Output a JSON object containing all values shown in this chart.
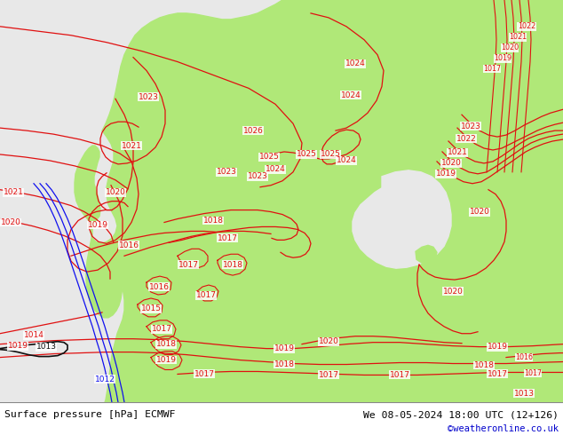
{
  "title_left": "Surface pressure [hPa] ECMWF",
  "title_right": "We 08-05-2024 18:00 UTC (12+126)",
  "title_right2": "©weatheronline.co.uk",
  "gray_bg": "#e8e8e8",
  "green_land": "#b0e878",
  "contour_red": "#e01010",
  "contour_black": "#101010",
  "contour_blue": "#1010ee",
  "copyright_color": "#0000cc",
  "fig_width": 6.34,
  "fig_height": 4.9,
  "dpi": 100,
  "land_polygon_x": [
    130,
    145,
    148,
    142,
    138,
    132,
    125,
    120,
    118,
    122,
    128,
    135,
    140,
    145,
    150,
    155,
    158,
    155,
    150,
    145,
    143,
    142,
    140,
    138,
    135,
    132,
    130,
    128,
    127,
    126,
    125,
    123,
    120,
    118,
    116,
    114,
    113,
    112,
    113,
    115,
    118,
    120,
    122,
    124,
    126,
    128,
    130,
    132,
    135,
    138,
    140,
    143,
    146,
    148,
    150,
    153,
    156,
    160,
    163,
    165,
    168,
    170,
    172,
    174,
    176,
    178,
    180,
    182,
    185,
    188,
    190,
    193,
    196,
    200,
    204,
    208,
    212,
    216,
    220,
    225,
    230,
    234,
    238,
    240,
    238,
    235,
    232,
    230,
    228,
    226,
    225,
    224,
    223,
    222,
    222,
    222,
    223,
    224,
    226,
    228,
    230,
    233,
    236,
    240,
    244,
    248,
    252,
    256,
    260,
    264,
    268,
    272,
    276,
    280,
    284,
    288,
    292,
    296,
    300,
    304,
    307,
    310,
    312,
    314,
    315,
    316,
    316,
    315,
    313,
    311,
    309,
    307,
    306,
    305,
    305,
    306,
    307,
    308,
    309,
    310,
    311,
    312,
    313,
    314,
    315,
    316,
    318,
    320,
    322,
    325,
    328,
    331,
    334,
    336,
    338,
    340,
    341,
    342,
    342,
    341,
    340,
    338,
    336,
    334,
    332,
    330,
    328,
    326,
    325,
    324,
    323,
    322,
    322,
    322,
    323,
    324,
    326,
    328,
    330,
    332,
    334,
    336,
    338,
    340,
    342,
    344,
    346,
    348,
    350,
    352,
    355,
    358,
    362,
    366,
    370,
    372,
    370,
    367,
    364,
    362,
    361,
    361,
    362,
    364,
    366,
    368,
    370,
    372,
    374,
    375,
    376,
    376,
    375,
    373,
    370,
    367,
    364,
    362,
    361,
    361,
    362,
    364,
    366,
    368,
    370,
    372,
    374,
    376,
    378,
    380,
    382,
    384,
    386,
    388,
    390,
    392,
    394,
    396,
    398,
    400,
    402,
    404,
    406,
    408,
    410,
    412,
    414,
    416,
    418,
    420,
    422,
    424,
    426,
    428,
    430,
    432,
    434,
    436,
    438,
    440,
    442,
    444,
    446,
    448,
    450,
    452,
    454,
    456,
    458,
    460,
    462,
    464,
    465,
    464,
    462,
    460,
    458,
    456,
    454,
    452,
    450,
    448,
    446,
    445,
    444,
    443,
    443,
    444,
    445,
    446,
    447,
    448,
    449,
    450,
    452,
    454,
    456,
    458,
    460,
    462,
    464,
    466,
    468,
    470,
    472,
    474,
    476,
    478,
    480,
    482,
    484,
    486,
    488,
    490,
    492,
    494,
    496,
    498,
    500,
    502,
    504,
    506,
    508,
    510,
    512,
    514,
    516,
    518,
    520,
    522,
    524,
    526,
    528,
    530,
    532,
    534,
    536,
    538,
    540,
    542,
    544,
    546,
    548,
    550,
    552,
    554,
    556,
    558,
    560,
    562,
    564,
    566,
    568,
    570,
    572,
    574,
    576,
    578,
    580,
    582,
    584,
    586,
    588,
    590,
    592,
    594,
    596,
    598,
    600,
    602,
    604,
    606,
    608,
    610,
    612,
    614,
    616,
    618,
    620,
    622,
    624,
    626,
    628,
    630,
    634,
    634,
    0,
    0,
    130
  ],
  "land_polygon_y": [
    272,
    268,
    260,
    252,
    245,
    240,
    238,
    237,
    235,
    232,
    228,
    224,
    220,
    216,
    212,
    208,
    204,
    200,
    196,
    192,
    188,
    184,
    180,
    176,
    173,
    170,
    168,
    167,
    166,
    166,
    167,
    168,
    170,
    172,
    174,
    177,
    180,
    184,
    188,
    192,
    196,
    200,
    203,
    206,
    208,
    210,
    211,
    212,
    212,
    212,
    211,
    210,
    208,
    206,
    204,
    202,
    200,
    198,
    196,
    194,
    192,
    190,
    188,
    186,
    185,
    184,
    184,
    184,
    185,
    186,
    188,
    190,
    192,
    194,
    196,
    197,
    198,
    198,
    198,
    197,
    196,
    194,
    192,
    190,
    188,
    186,
    184,
    183,
    182,
    182,
    183,
    184,
    186,
    188,
    190,
    192,
    194,
    196,
    197,
    198,
    198,
    197,
    196,
    194,
    192,
    190,
    188,
    186,
    185,
    184,
    184,
    185,
    186,
    188,
    190,
    192,
    194,
    196,
    197,
    198,
    198,
    197,
    196,
    194,
    192,
    190,
    188,
    186,
    185,
    184,
    184,
    185,
    186,
    188,
    190,
    192,
    194,
    196,
    198,
    200,
    202,
    204,
    206,
    208,
    210,
    212,
    213,
    214,
    214,
    213,
    212,
    210,
    208,
    206,
    205,
    204,
    204,
    205,
    206,
    208,
    210,
    212,
    214,
    216,
    218,
    220,
    222,
    224,
    226,
    228,
    230,
    232,
    234,
    236,
    238,
    240,
    241,
    242,
    242,
    241,
    240,
    238,
    236,
    234,
    232,
    230,
    228,
    226,
    225,
    224,
    223,
    222,
    222,
    222,
    223,
    225,
    228,
    231,
    234,
    237,
    240,
    243,
    246,
    248,
    250,
    251,
    252,
    252,
    251,
    250,
    248,
    246,
    244,
    242,
    241,
    241,
    242,
    244,
    246,
    248,
    250,
    252,
    253,
    254,
    254,
    253,
    252,
    250,
    248,
    246,
    244,
    242,
    241,
    241,
    242,
    244,
    246,
    248,
    250,
    252,
    253,
    254,
    254,
    253,
    252,
    250,
    248,
    246,
    244,
    242,
    241,
    240,
    241,
    242,
    244,
    246,
    248,
    250,
    252,
    253,
    254,
    254,
    253,
    252,
    250,
    248,
    246,
    244,
    243,
    243,
    244,
    246,
    248,
    250,
    252,
    254,
    256,
    258,
    260,
    261,
    262,
    262,
    261,
    260,
    258,
    256,
    254,
    252,
    250,
    248,
    246,
    244,
    242,
    241,
    240,
    241,
    242,
    244,
    246,
    248,
    250,
    252,
    253,
    254,
    254,
    253,
    252,
    250,
    248,
    246,
    244,
    242,
    241,
    240,
    241,
    242,
    244,
    246,
    248,
    250,
    252,
    253,
    254,
    253,
    252,
    250,
    248,
    246,
    244,
    243,
    243,
    244,
    246,
    248,
    250,
    252,
    253,
    254,
    254,
    253,
    252,
    250,
    248,
    246,
    244,
    243,
    243,
    244,
    246,
    248,
    250,
    252,
    253,
    254,
    253,
    252,
    250,
    248,
    246,
    245,
    245,
    246,
    248,
    250,
    252,
    253,
    254,
    253,
    252,
    250,
    248,
    246,
    245,
    244,
    244,
    245,
    246,
    248,
    249,
    250,
    250,
    249,
    248,
    246,
    244,
    0,
    0,
    456,
    456,
    272
  ]
}
